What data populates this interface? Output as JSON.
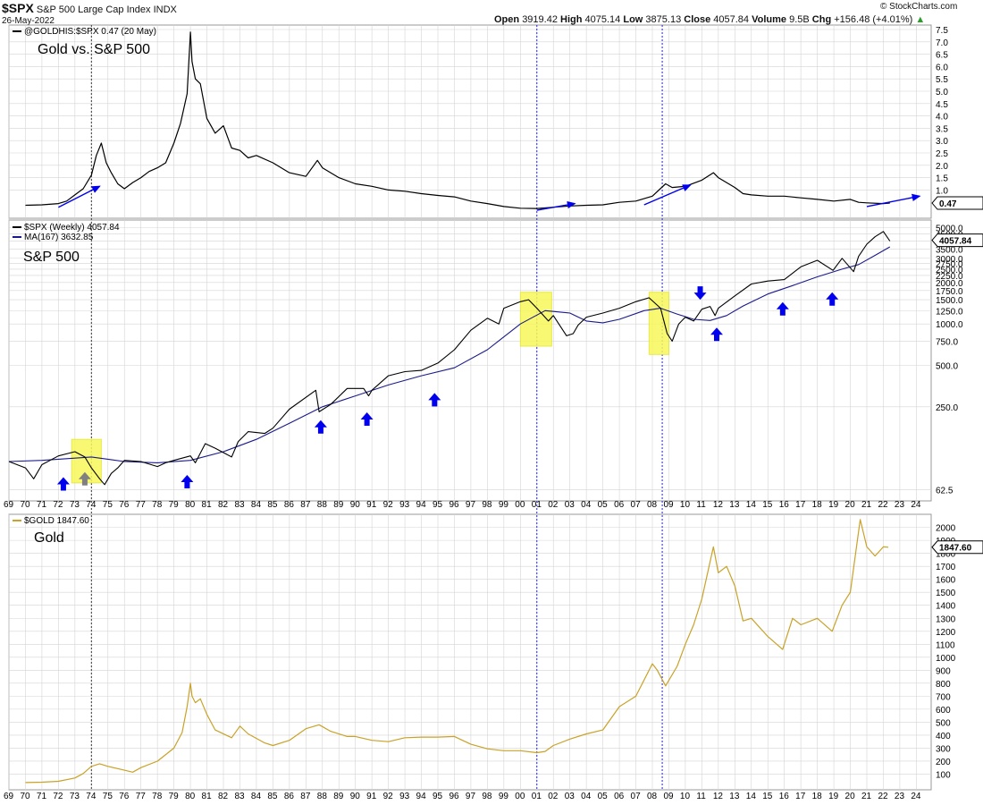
{
  "header": {
    "symbol": "$SPX",
    "name": "S&P 500 Large Cap Index",
    "exchange": "INDX",
    "date": "26-May-2022",
    "open_label": "Open",
    "open": "3919.42",
    "high_label": "High",
    "high": "4075.14",
    "low_label": "Low",
    "low": "3875.13",
    "close_label": "Close",
    "close": "4057.84",
    "volume_label": "Volume",
    "volume": "9.5B",
    "chg_label": "Chg",
    "chg": "+156.48 (+4.01%)",
    "credit": "© StockCharts.com"
  },
  "colors": {
    "price": "#000000",
    "ma": "#1a1a8c",
    "gold": "#c9a227",
    "arrow_blue": "#0000ee",
    "arrow_gray": "#808080",
    "highlight": "#f7f75a",
    "vline_blue": "#2222cc",
    "grid": "#d4d4d4"
  },
  "x_axis": {
    "tick_labels": [
      "69",
      "70",
      "71",
      "72",
      "73",
      "74",
      "75",
      "76",
      "77",
      "78",
      "79",
      "80",
      "81",
      "82",
      "83",
      "84",
      "85",
      "86",
      "87",
      "88",
      "89",
      "90",
      "91",
      "92",
      "93",
      "94",
      "95",
      "96",
      "97",
      "98",
      "99",
      "00",
      "01",
      "02",
      "03",
      "04",
      "05",
      "06",
      "07",
      "08",
      "09",
      "10",
      "11",
      "12",
      "13",
      "14",
      "15",
      "16",
      "17",
      "18",
      "19",
      "20",
      "21",
      "22",
      "23",
      "24"
    ]
  },
  "vertical_markers": [
    {
      "year": 1974.0,
      "style": "dotted",
      "color": "black"
    },
    {
      "year": 2001.0,
      "style": "dotted",
      "color": "blue"
    },
    {
      "year": 2008.6,
      "style": "dotted",
      "color": "blue"
    }
  ],
  "chart_data": [
    {
      "type": "line",
      "panel": "ratio",
      "title": "Gold vs. S&P 500",
      "legend_label": "@GOLDHIS:$SPX 0.47 (20 May)",
      "current_value": "0.47",
      "y_ticks": [
        "7.5",
        "7.0",
        "6.5",
        "6.0",
        "5.5",
        "5.0",
        "4.5",
        "4.0",
        "3.5",
        "3.0",
        "2.5",
        "2.0",
        "1.5",
        "1.0"
      ],
      "ylim": [
        0,
        7.5
      ],
      "series": [
        {
          "name": "@GOLDHIS:$SPX",
          "x": [
            1970.0,
            1971.0,
            1972.0,
            1972.5,
            1973.0,
            1973.5,
            1974.0,
            1974.3,
            1974.6,
            1974.9,
            1975.2,
            1975.6,
            1976.0,
            1976.5,
            1977.0,
            1977.5,
            1978.0,
            1978.5,
            1979.0,
            1979.4,
            1979.8,
            1980.0,
            1980.1,
            1980.3,
            1980.6,
            1981.0,
            1981.5,
            1982.0,
            1982.5,
            1983.0,
            1983.5,
            1984.0,
            1985.0,
            1986.0,
            1987.0,
            1987.7,
            1988.0,
            1989.0,
            1990.0,
            1991.0,
            1992.0,
            1993.0,
            1994.0,
            1995.0,
            1996.0,
            1997.0,
            1998.0,
            1999.0,
            2000.0,
            2001.0,
            2002.0,
            2003.0,
            2004.0,
            2005.0,
            2006.0,
            2007.0,
            2008.0,
            2008.8,
            2009.2,
            2010.0,
            2011.0,
            2011.7,
            2012.0,
            2013.0,
            2013.5,
            2014.0,
            2015.0,
            2016.0,
            2017.0,
            2018.0,
            2019.0,
            2020.0,
            2020.5,
            2021.0,
            2022.0,
            2022.4
          ],
          "values": [
            0.38,
            0.4,
            0.45,
            0.55,
            0.8,
            1.05,
            1.6,
            2.4,
            2.9,
            2.1,
            1.7,
            1.25,
            1.05,
            1.3,
            1.5,
            1.75,
            1.9,
            2.1,
            2.9,
            3.7,
            4.9,
            7.4,
            6.2,
            5.5,
            5.3,
            3.9,
            3.3,
            3.6,
            2.7,
            2.6,
            2.3,
            2.4,
            2.1,
            1.7,
            1.55,
            2.2,
            1.9,
            1.5,
            1.25,
            1.15,
            1.0,
            0.95,
            0.85,
            0.78,
            0.72,
            0.55,
            0.45,
            0.33,
            0.26,
            0.25,
            0.3,
            0.35,
            0.38,
            0.4,
            0.5,
            0.55,
            0.75,
            1.25,
            1.1,
            1.15,
            1.4,
            1.7,
            1.5,
            1.1,
            0.85,
            0.8,
            0.75,
            0.75,
            0.68,
            0.62,
            0.55,
            0.62,
            0.5,
            0.48,
            0.45,
            0.47
          ]
        }
      ],
      "trend_arrows": [
        {
          "x1": 1972.0,
          "y1": 0.3,
          "x2": 1974.5,
          "y2": 1.15
        },
        {
          "x1": 2001.0,
          "y1": 0.18,
          "x2": 2003.3,
          "y2": 0.45
        },
        {
          "x1": 2007.5,
          "y1": 0.4,
          "x2": 2010.3,
          "y2": 1.2
        },
        {
          "x1": 2021.0,
          "y1": 0.33,
          "x2": 2024.2,
          "y2": 0.75
        }
      ]
    },
    {
      "type": "line",
      "panel": "spx",
      "title": "S&P 500",
      "legend_label": "$SPX (Weekly) 4057.84",
      "ma_label": "MA(167) 3632.85",
      "current_value": "4057.84",
      "y_scale": "log",
      "y_ticks": [
        "5000.0",
        "4500.0",
        "4000.0",
        "3500.0",
        "3000.0",
        "2750.0",
        "2500.0",
        "2250.0",
        "2000.0",
        "1750.0",
        "1500.0",
        "1250.0",
        "1000.0",
        "750.0",
        "500.0",
        "250.0",
        "62.5"
      ],
      "ylim": [
        55,
        5200
      ],
      "series": [
        {
          "name": "$SPX",
          "x": [
            1969.0,
            1970.0,
            1970.5,
            1971.0,
            1972.0,
            1973.0,
            1973.6,
            1974.0,
            1974.5,
            1974.8,
            1975.2,
            1975.6,
            1976.0,
            1977.0,
            1978.0,
            1978.5,
            1979.0,
            1980.0,
            1980.3,
            1980.9,
            1981.5,
            1982.5,
            1982.9,
            1983.5,
            1984.5,
            1985.0,
            1986.0,
            1987.6,
            1987.8,
            1988.5,
            1989.5,
            1990.5,
            1990.8,
            1991.0,
            1992.0,
            1993.0,
            1994.0,
            1995.0,
            1996.0,
            1997.0,
            1998.0,
            1998.7,
            1999.0,
            2000.0,
            2000.5,
            2001.0,
            2001.7,
            2002.0,
            2002.8,
            2003.2,
            2003.5,
            2004.0,
            2005.0,
            2006.0,
            2007.0,
            2007.8,
            2008.5,
            2008.9,
            2009.2,
            2009.6,
            2010.0,
            2010.5,
            2011.0,
            2011.5,
            2011.8,
            2012.0,
            2013.0,
            2014.0,
            2015.0,
            2016.0,
            2017.0,
            2018.0,
            2018.95,
            2019.5,
            2020.2,
            2020.5,
            2021.0,
            2021.5,
            2022.0,
            2022.4
          ],
          "values": [
            100,
            90,
            75,
            95,
            110,
            118,
            108,
            90,
            75,
            68,
            82,
            90,
            102,
            100,
            92,
            98,
            102,
            110,
            98,
            135,
            125,
            108,
            140,
            165,
            160,
            175,
            240,
            330,
            230,
            260,
            340,
            340,
            300,
            330,
            420,
            450,
            460,
            520,
            650,
            900,
            1100,
            1000,
            1300,
            1450,
            1500,
            1300,
            1050,
            1150,
            820,
            850,
            980,
            1120,
            1200,
            1300,
            1450,
            1550,
            1300,
            850,
            750,
            1000,
            1120,
            1050,
            1280,
            1340,
            1150,
            1300,
            1600,
            1950,
            2050,
            2100,
            2600,
            2900,
            2450,
            3000,
            2400,
            3100,
            3800,
            4300,
            4700,
            4000
          ]
        },
        {
          "name": "MA(167)",
          "x": [
            1969.0,
            1971.0,
            1973.0,
            1974.0,
            1975.0,
            1976.0,
            1978.0,
            1980.0,
            1982.0,
            1984.0,
            1986.0,
            1988.0,
            1990.0,
            1992.0,
            1994.0,
            1996.0,
            1998.0,
            2000.0,
            2001.5,
            2003.0,
            2004.0,
            2005.0,
            2006.0,
            2007.5,
            2008.5,
            2009.5,
            2010.5,
            2011.5,
            2012.5,
            2013.5,
            2015.0,
            2016.5,
            2018.0,
            2019.5,
            2020.5,
            2021.5,
            2022.4
          ],
          "values": [
            100,
            102,
            106,
            108,
            104,
            100,
            98,
            102,
            118,
            145,
            190,
            250,
            300,
            360,
            420,
            480,
            650,
            1000,
            1250,
            1200,
            1050,
            1020,
            1080,
            1250,
            1300,
            1180,
            1080,
            1060,
            1150,
            1350,
            1650,
            1900,
            2200,
            2500,
            2700,
            3150,
            3630
          ]
        }
      ],
      "highlight_boxes": [
        {
          "x0": 1972.8,
          "x1": 1974.6,
          "y0": 70,
          "y1": 145
        },
        {
          "x0": 2000.0,
          "x1": 2001.9,
          "y0": 690,
          "y1": 1700
        },
        {
          "x0": 2007.8,
          "x1": 2009.0,
          "y0": 600,
          "y1": 1700
        }
      ],
      "up_arrows": [
        {
          "year": 1972.3,
          "value": 77,
          "color": "blue"
        },
        {
          "year": 1973.6,
          "value": 84,
          "color": "gray"
        },
        {
          "year": 1979.8,
          "value": 80,
          "color": "blue"
        },
        {
          "year": 1987.9,
          "value": 200,
          "color": "blue"
        },
        {
          "year": 1990.7,
          "value": 228,
          "color": "blue"
        },
        {
          "year": 1994.8,
          "value": 315,
          "color": "blue"
        },
        {
          "year": 2011.9,
          "value": 940,
          "color": "blue"
        },
        {
          "year": 2015.9,
          "value": 1440,
          "color": "blue"
        },
        {
          "year": 2018.9,
          "value": 1700,
          "color": "blue"
        }
      ],
      "down_arrows": [
        {
          "year": 2010.9,
          "value": 1500,
          "color": "blue"
        }
      ]
    },
    {
      "type": "line",
      "panel": "gold",
      "title": "Gold",
      "legend_label": "$GOLD 1847.60",
      "current_value": "1847.60",
      "y_ticks": [
        "2000",
        "1900",
        "1800",
        "1700",
        "1600",
        "1500",
        "1400",
        "1300",
        "1200",
        "1100",
        "1000",
        "900",
        "800",
        "700",
        "600",
        "500",
        "400",
        "300",
        "200",
        "100"
      ],
      "ylim": [
        0,
        2080
      ],
      "series": [
        {
          "name": "$GOLD",
          "x": [
            1970.0,
            1971.0,
            1972.0,
            1973.0,
            1973.5,
            1974.0,
            1974.5,
            1975.0,
            1976.0,
            1976.5,
            1977.0,
            1978.0,
            1979.0,
            1979.5,
            1979.8,
            1980.0,
            1980.1,
            1980.3,
            1980.6,
            1981.0,
            1981.5,
            1982.5,
            1983.0,
            1983.5,
            1984.5,
            1985.0,
            1986.0,
            1987.0,
            1987.8,
            1988.5,
            1989.5,
            1990.0,
            1991.0,
            1992.0,
            1993.0,
            1994.0,
            1995.0,
            1996.0,
            1997.0,
            1998.0,
            1999.0,
            2000.0,
            2001.0,
            2001.5,
            2002.0,
            2003.0,
            2004.0,
            2005.0,
            2006.0,
            2007.0,
            2008.0,
            2008.3,
            2008.8,
            2009.5,
            2010.0,
            2010.5,
            2011.0,
            2011.7,
            2012.0,
            2012.5,
            2013.0,
            2013.5,
            2014.0,
            2015.0,
            2015.9,
            2016.5,
            2017.0,
            2018.0,
            2018.9,
            2019.5,
            2020.0,
            2020.6,
            2021.0,
            2021.5,
            2022.0,
            2022.3
          ],
          "values": [
            35,
            38,
            45,
            70,
            105,
            160,
            180,
            160,
            130,
            115,
            150,
            200,
            300,
            420,
            620,
            800,
            700,
            650,
            680,
            560,
            440,
            380,
            470,
            410,
            340,
            320,
            360,
            450,
            480,
            430,
            390,
            390,
            360,
            350,
            380,
            385,
            385,
            390,
            330,
            295,
            280,
            280,
            265,
            275,
            320,
            370,
            410,
            440,
            620,
            700,
            950,
            900,
            780,
            930,
            1100,
            1250,
            1450,
            1850,
            1650,
            1700,
            1550,
            1280,
            1300,
            1160,
            1060,
            1300,
            1250,
            1300,
            1200,
            1400,
            1500,
            2060,
            1850,
            1780,
            1850,
            1847
          ]
        }
      ]
    }
  ]
}
